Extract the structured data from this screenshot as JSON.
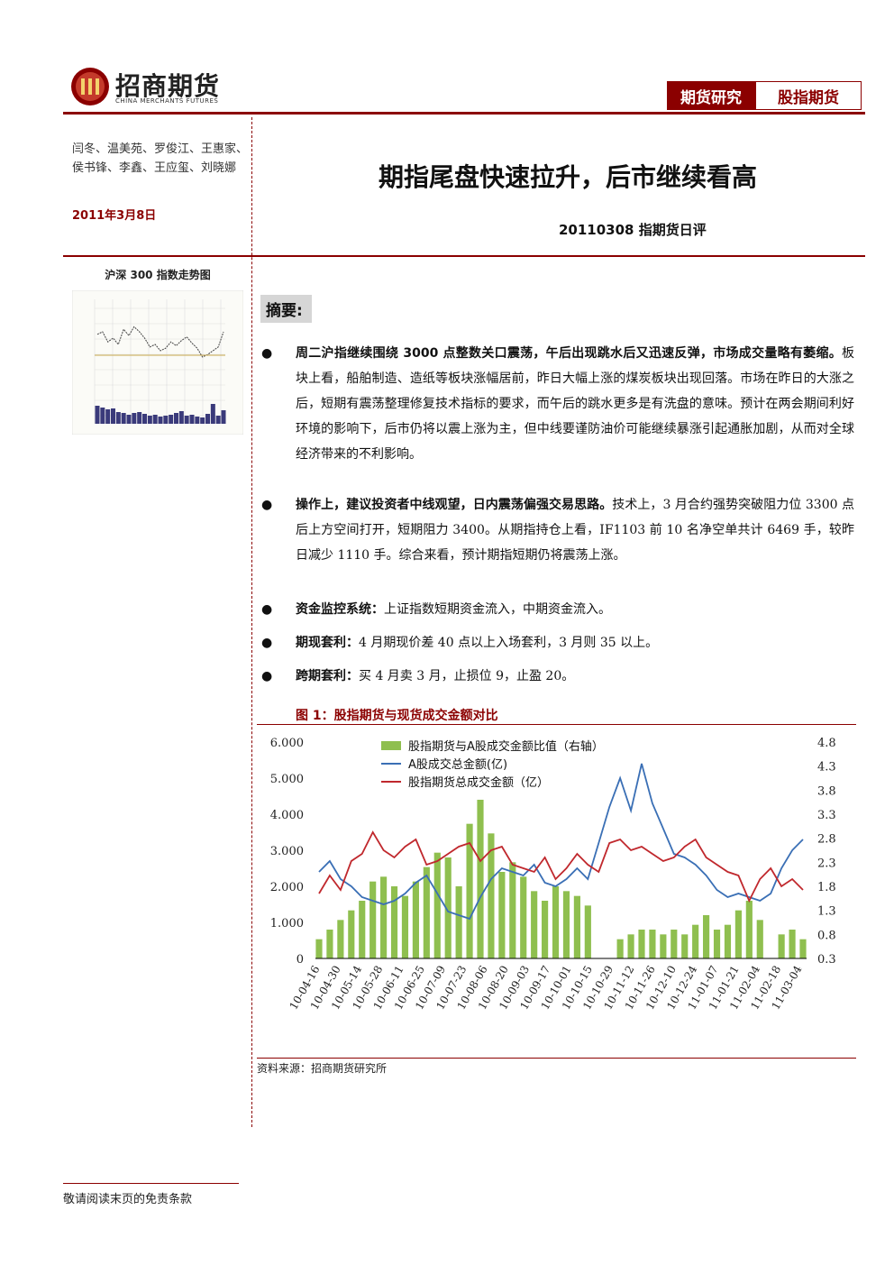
{
  "header": {
    "logo_cn": "招商期货",
    "logo_en": "CHINA MERCHANTS FUTURES",
    "tab_research": "期货研究",
    "tab_category": "股指期货",
    "brand_color": "#8b0000"
  },
  "left": {
    "authors": "闫冬、温美苑、罗俊江、王惠家、侯书锋、李鑫、王应玺、刘晓娜",
    "date": "2011年3月8日",
    "chart_title": "沪深 300 指数走势图"
  },
  "main": {
    "title": "期指尾盘快速拉升，后市继续看高",
    "subtitle": "20110308 指期货日评",
    "summary_label": "摘要:",
    "bullets": [
      {
        "bold": "周二沪指继续围绕 3000 点整数关口震荡，午后出现跳水后又迅速反弹，市场成交量略有萎缩。",
        "text": "板块上看，船舶制造、造纸等板块涨幅居前，昨日大幅上涨的煤炭板块出现回落。市场在昨日的大涨之后，短期有震荡整理修复技术指标的要求，而午后的跳水更多是有洗盘的意味。预计在两会期间利好环境的影响下，后市仍将以震上涨为主，但中线要谨防油价可能继续暴涨引起通胀加剧，从而对全球经济带来的不利影响。"
      },
      {
        "bold": "操作上，建议投资者中线观望，日内震荡偏强交易思路。",
        "text": "技术上，3 月合约强势突破阻力位 3300 点后上方空间打开，短期阻力 3400。从期指持仓上看，IF1103 前 10 名净空单共计 6469 手，较昨日减少 1110 手。综合来看，预计期指短期仍将震荡上涨。"
      },
      {
        "bold": "资金监控系统：",
        "text": "上证指数短期资金流入，中期资金流入。"
      },
      {
        "bold": "期现套利：",
        "text": "4 月期现价差 40 点以上入场套利，3 月则 35 以上。"
      },
      {
        "bold": "跨期套利：",
        "text": "买 4 月卖 3 月，止损位 9，止盈 20。"
      }
    ],
    "figure_title": "图 1：股指期货与现货成交金额对比",
    "source": "资料来源：招商期货研究所"
  },
  "chart_data": {
    "type": "line",
    "legend": [
      "股指期货与A股成交金额比值（右轴）",
      "A股成交总金额(亿)",
      "股指期货总成交金额（亿）"
    ],
    "left_ticks": [
      "0",
      "1.000",
      "2.000",
      "3.000",
      "4.000",
      "5.000",
      "6.000"
    ],
    "right_ticks": [
      "0.3",
      "0.8",
      "1.3",
      "1.8",
      "2.3",
      "2.8",
      "3.3",
      "3.8",
      "4.3",
      "4.8"
    ],
    "ylim_left": [
      0,
      6000
    ],
    "ylim_right": [
      0.3,
      4.8
    ],
    "x_labels": [
      "10-04-16",
      "10-04-30",
      "10-05-14",
      "10-05-28",
      "10-06-11",
      "10-06-25",
      "10-07-09",
      "10-07-23",
      "10-08-06",
      "10-08-20",
      "10-09-03",
      "10-09-17",
      "10-10-01",
      "10-10-15",
      "10-10-29",
      "10-11-12",
      "10-11-26",
      "10-12-10",
      "10-12-24",
      "11-01-07",
      "11-01-21",
      "11-02-04",
      "11-02-18",
      "11-03-04"
    ],
    "series": [
      {
        "name": "股指期货与A股成交金额比值（右轴）",
        "axis": "right",
        "color": "#8fbf4f",
        "values": [
          0.7,
          0.9,
          1.1,
          1.3,
          1.5,
          1.9,
          2.0,
          1.8,
          1.6,
          1.9,
          2.2,
          2.5,
          2.4,
          1.8,
          3.1,
          3.6,
          2.9,
          2.1,
          2.3,
          2.0,
          1.7,
          1.5,
          1.8,
          1.7,
          1.6,
          1.4,
          0.3,
          0.3,
          0.7,
          0.8,
          0.9,
          0.9,
          0.8,
          0.9,
          0.8,
          1.0,
          1.2,
          0.9,
          1.0,
          1.3,
          1.5,
          1.1,
          0.3,
          0.8,
          0.9,
          0.7
        ]
      },
      {
        "name": "A股成交总金额(亿)",
        "axis": "left",
        "color": "#3a6fb5",
        "values": [
          2400,
          2700,
          2200,
          2000,
          1700,
          1600,
          1500,
          1600,
          1800,
          2100,
          2300,
          1800,
          1300,
          1200,
          1100,
          1700,
          2200,
          2500,
          2400,
          2300,
          2600,
          2100,
          2000,
          2200,
          2500,
          2200,
          3200,
          4200,
          5000,
          4100,
          5400,
          4300,
          3600,
          2900,
          2800,
          2600,
          2300,
          1900,
          1700,
          1800,
          1700,
          1600,
          1800,
          2500,
          3000,
          3300
        ]
      },
      {
        "name": "股指期货总成交金额（亿）",
        "axis": "left",
        "color": "#c0282d",
        "values": [
          1800,
          2300,
          1900,
          2700,
          2900,
          3500,
          3000,
          2800,
          3100,
          3300,
          2600,
          2700,
          2900,
          3100,
          3200,
          2700,
          3000,
          3100,
          2600,
          2500,
          2400,
          2800,
          2200,
          2500,
          2900,
          2600,
          2400,
          3200,
          3300,
          3000,
          3100,
          2900,
          2700,
          2800,
          3100,
          3300,
          2800,
          2600,
          2400,
          2300,
          1600,
          2200,
          2500,
          2000,
          2200,
          1900
        ]
      }
    ]
  },
  "mini_chart": {
    "price": [
      58,
      60,
      52,
      55,
      50,
      62,
      57,
      64,
      60,
      55,
      48,
      50,
      45,
      47,
      52,
      49,
      53,
      56,
      51,
      47,
      40,
      42,
      45,
      48,
      60
    ],
    "volume": [
      20,
      18,
      16,
      17,
      13,
      12,
      10,
      12,
      13,
      11,
      9,
      10,
      8,
      9,
      10,
      12,
      14,
      9,
      10,
      8,
      7,
      11,
      22,
      9,
      15
    ]
  },
  "footer": {
    "disclaimer": "敬请阅读末页的免责条款"
  }
}
